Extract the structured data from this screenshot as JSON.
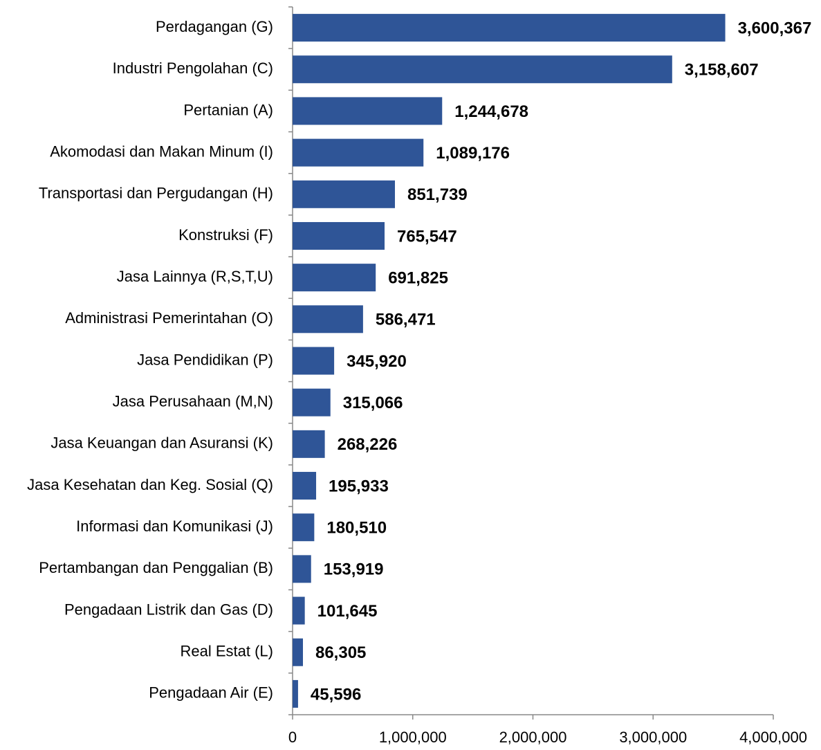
{
  "chart_data": {
    "type": "bar",
    "orientation": "horizontal",
    "color": "#2f5597",
    "categories": [
      "Perdagangan (G)",
      "Industri Pengolahan (C)",
      "Pertanian (A)",
      "Akomodasi dan Makan Minum (I)",
      "Transportasi dan Pergudangan (H)",
      "Konstruksi (F)",
      "Jasa Lainnya (R,S,T,U)",
      "Administrasi Pemerintahan (O)",
      "Jasa Pendidikan (P)",
      "Jasa Perusahaan (M,N)",
      "Jasa Keuangan dan Asuransi (K)",
      "Jasa Kesehatan dan Keg. Sosial (Q)",
      "Informasi dan Komunikasi (J)",
      "Pertambangan dan Penggalian (B)",
      "Pengadaan Listrik dan Gas (D)",
      "Real Estat (L)",
      "Pengadaan Air (E)"
    ],
    "values": [
      3600367,
      3158607,
      1244678,
      1089176,
      851739,
      765547,
      691825,
      586471,
      345920,
      315066,
      268226,
      195933,
      180510,
      153919,
      101645,
      86305,
      45596
    ],
    "value_labels": [
      "3,600,367",
      "3,158,607",
      "1,244,678",
      "1,089,176",
      "851,739",
      "765,547",
      "691,825",
      "586,471",
      "345,920",
      "315,066",
      "268,226",
      "195,933",
      "180,510",
      "153,919",
      "101,645",
      "86,305",
      "45,596"
    ],
    "xlim": [
      0,
      4000000
    ],
    "xticks": [
      0,
      {
        "value": 1000000,
        "label": "1,000,000"
      },
      {
        "value": 2000000,
        "label": "2,000,000"
      },
      {
        "value": 3000000,
        "label": "3,000,000"
      },
      {
        "value": 4000000,
        "label": "4,000,000"
      }
    ]
  }
}
